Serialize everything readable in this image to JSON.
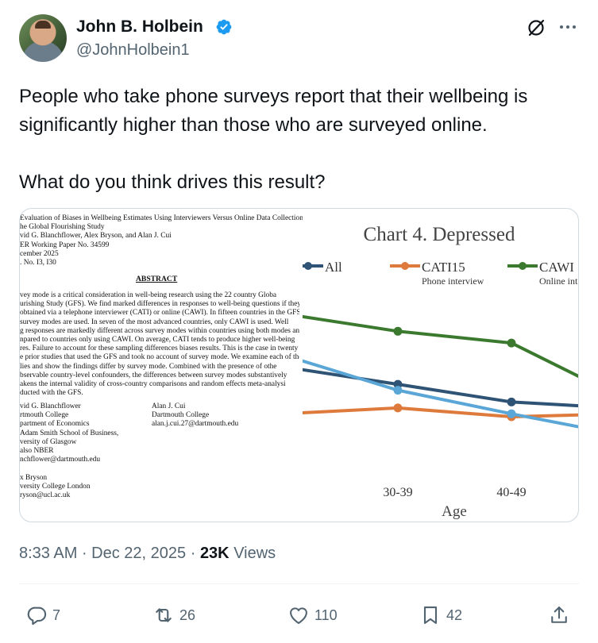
{
  "author": {
    "name": "John B. Holbein",
    "handle": "@JohnHolbein1",
    "avatar_icon": "avatar-photo",
    "verified_color": "#1d9bf0"
  },
  "tweet": {
    "paragraphs": [
      "People who take phone surveys report that their wellbeing is",
      "significantly higher than those who are surveyed online.",
      "What do you think drives this result?"
    ]
  },
  "paper": {
    "header": [
      "Evaluation of Biases in Wellbeing Estimates Using Interviewers Versus Online Data Collection",
      "he Global Flourishing Study",
      "vid G. Blanchflower, Alex Bryson, and Alan J. Cui",
      "ER Working Paper No. 34599",
      "cember 2025",
      ". No. I3, I30"
    ],
    "abstract_title": "ABSTRACT",
    "abstract_lines": [
      "vey mode is a critical consideration in well-being research using the 22 country Globa",
      "urishing Study (GFS). We find marked differences in responses to well-being questions if they",
      "obtained via a telephone interviewer (CATI) or online (CAWI). In fifteen countries in the GFS",
      "survey modes are used. In seven of the most advanced countries, only CAWI is used. Well",
      "g responses are markedly different across survey modes within countries using both modes and",
      "npared to countries only using CAWI. On average, CATI tends to produce higher well-being",
      "res. Failure to account for these sampling differences biases results. This is the case in twenty",
      "e prior studies that used the GFS and took no account of survey mode. We examine each of these",
      "lies and show the findings differ by survey mode. Combined with the presence of othe",
      "bservable country-level confounders, the differences between survey modes substantively",
      "akens the internal validity of cross-country comparisons and random effects meta-analysi",
      "ducted with the GFS."
    ],
    "affiliation_left": [
      "vid G. Blanchflower",
      "rtmouth College",
      "partment of Economics",
      "Adam Smith School of Business,",
      "versity of Glasgow",
      "also NBER",
      "nchflower@dartmouth.edu",
      "",
      "x Bryson",
      "versity College London",
      "ryson@ucl.ac.uk"
    ],
    "affiliation_right": [
      "Alan J. Cui",
      "Dartmouth College",
      "alan.j.cui.27@dartmouth.edu"
    ]
  },
  "chart_data": {
    "type": "line",
    "title": "Chart 4. Depressed",
    "xlabel": "Age",
    "ylabel": "",
    "categories": [
      "",
      "30-39",
      "40-49",
      ""
    ],
    "series": [
      {
        "name": "All",
        "sublabel": "",
        "color": "#2e5375",
        "values": [
          48,
          42,
          36,
          34
        ]
      },
      {
        "name": "CATI15",
        "sublabel": "Phone interview",
        "color": "#dd7a3c",
        "values": [
          32,
          34,
          31,
          32
        ]
      },
      {
        "name": "CAWI",
        "sublabel": "Online int",
        "color": "#3b7a2e",
        "values": [
          66,
          60,
          56,
          38
        ]
      },
      {
        "name": "",
        "sublabel": "",
        "color": "#5aa6d6",
        "values": [
          52,
          40,
          32,
          25
        ]
      }
    ],
    "ylim": [
      10,
      80
    ],
    "grid": false,
    "legend_position": "top"
  },
  "meta": {
    "time": "8:33 AM",
    "sep1": " · ",
    "date": "Dec 22, 2025",
    "sep2": " · ",
    "views_count": "23K",
    "views_label": " Views"
  },
  "actions": {
    "replies": "7",
    "reposts": "26",
    "likes": "110",
    "bookmarks": "42"
  },
  "colors": {
    "text_secondary": "#536471",
    "border": "#cfd9de",
    "divider": "#eff3f4"
  }
}
